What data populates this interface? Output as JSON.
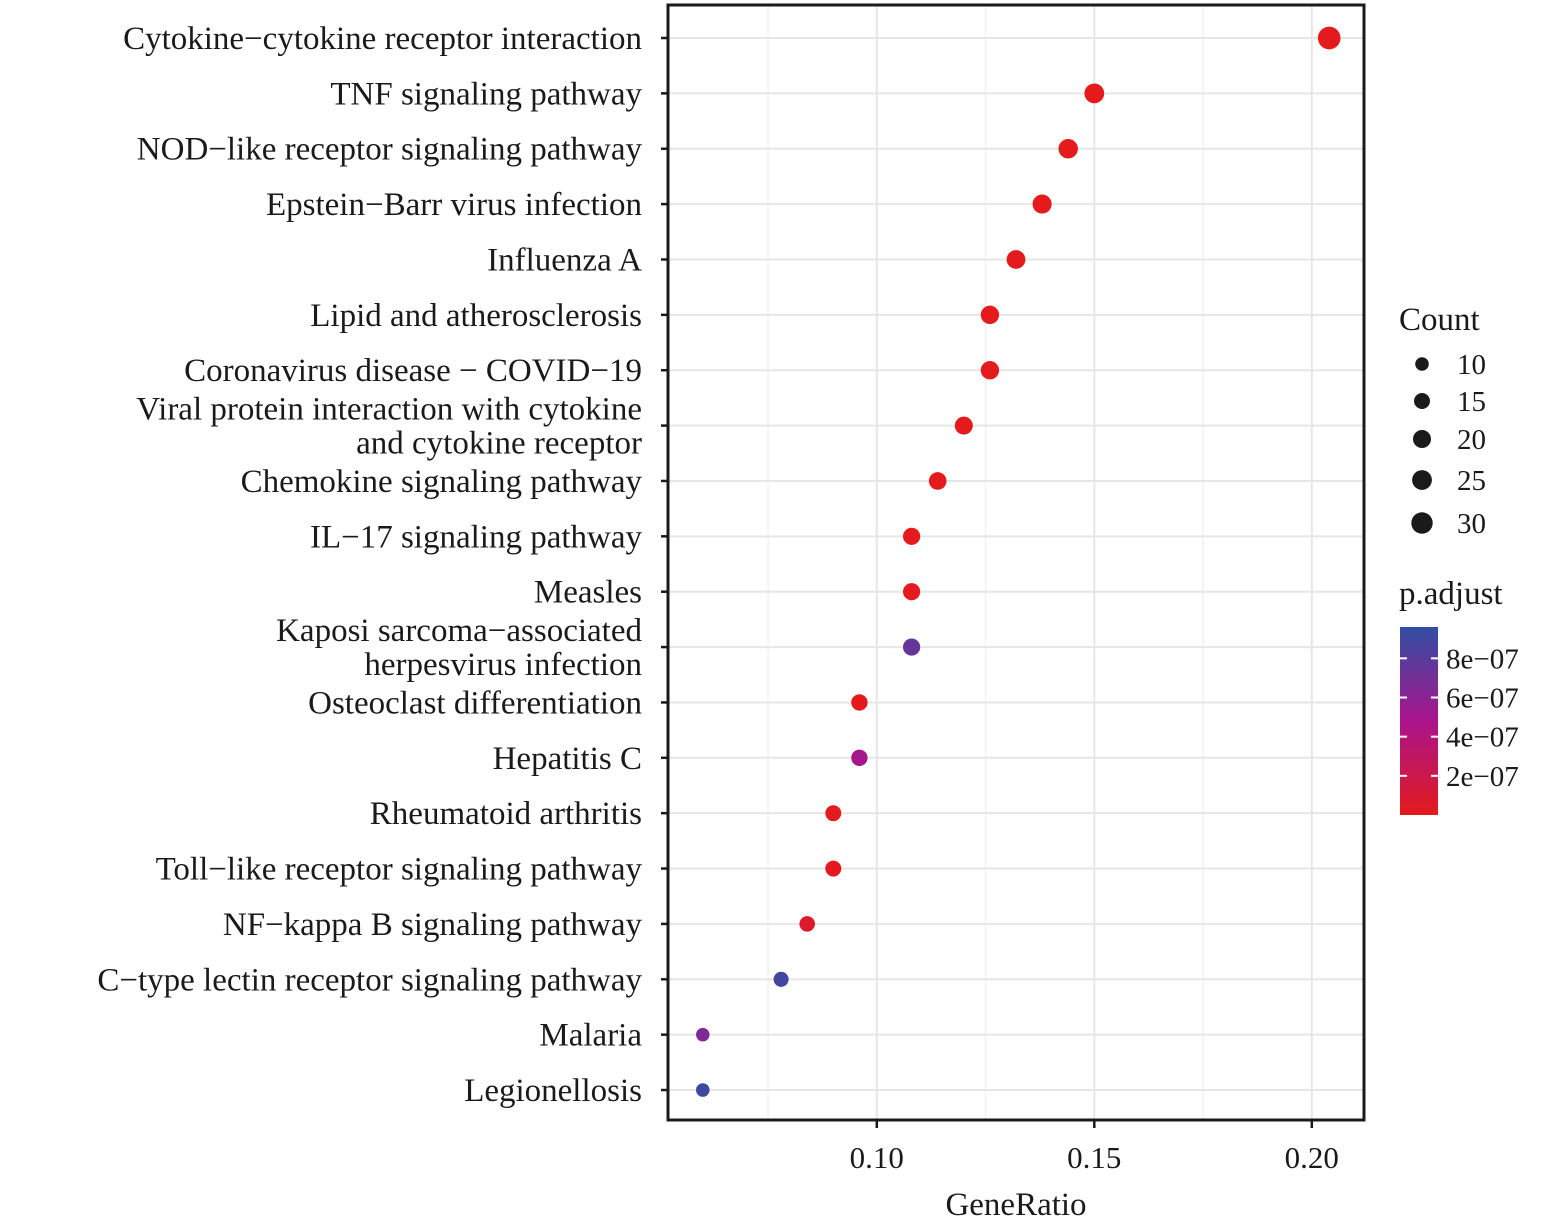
{
  "chart_data": {
    "type": "scatter",
    "xlabel": "GeneRatio",
    "ylabel": "",
    "xlim": [
      0.052,
      0.212
    ],
    "xticks": [
      0.1,
      0.15,
      0.2
    ],
    "xtick_labels": [
      "0.10",
      "0.15",
      "0.20"
    ],
    "grid": true,
    "legend_placement": "right",
    "categories": [
      "Cytokine−cytokine receptor interaction",
      "TNF signaling pathway",
      "NOD−like receptor signaling pathway",
      "Epstein−Barr virus infection",
      "Influenza A",
      "Lipid and atherosclerosis",
      "Coronavirus disease − COVID−19",
      "Viral protein interaction with cytokine\nand cytokine receptor",
      "Chemokine signaling pathway",
      "IL−17 signaling pathway",
      "Measles",
      "Kaposi sarcoma−associated\nherpesvirus infection",
      "Osteoclast differentiation",
      "Hepatitis C",
      "Rheumatoid arthritis",
      "Toll−like receptor signaling pathway",
      "NF−kappa B signaling pathway",
      "C−type lectin receptor signaling pathway",
      "Malaria",
      "Legionellosis"
    ],
    "points": [
      {
        "category": "Cytokine−cytokine receptor interaction",
        "x": 0.204,
        "count": 34,
        "p_adjust": 1e-20
      },
      {
        "category": "TNF signaling pathway",
        "x": 0.15,
        "count": 25,
        "p_adjust": 1e-15
      },
      {
        "category": "NOD−like receptor signaling pathway",
        "x": 0.144,
        "count": 24,
        "p_adjust": 1e-12
      },
      {
        "category": "Epstein−Barr virus infection",
        "x": 0.138,
        "count": 23,
        "p_adjust": 1e-11
      },
      {
        "category": "Influenza A",
        "x": 0.132,
        "count": 22,
        "p_adjust": 1e-10
      },
      {
        "category": "Lipid and atherosclerosis",
        "x": 0.126,
        "count": 21,
        "p_adjust": 1e-09
      },
      {
        "category": "Coronavirus disease − COVID−19",
        "x": 0.126,
        "count": 21,
        "p_adjust": 1e-09
      },
      {
        "category": "Viral protein interaction with cytokine\nand cytokine receptor",
        "x": 0.12,
        "count": 20,
        "p_adjust": 1e-09
      },
      {
        "category": "Chemokine signaling pathway",
        "x": 0.114,
        "count": 19,
        "p_adjust": 2e-09
      },
      {
        "category": "IL−17 signaling pathway",
        "x": 0.108,
        "count": 18,
        "p_adjust": 1e-09
      },
      {
        "category": "Measles",
        "x": 0.108,
        "count": 18,
        "p_adjust": 2e-09
      },
      {
        "category": "Kaposi sarcoma−associated\nherpesvirus infection",
        "x": 0.108,
        "count": 18,
        "p_adjust": 7.5e-07
      },
      {
        "category": "Osteoclast differentiation",
        "x": 0.096,
        "count": 16,
        "p_adjust": 5e-09
      },
      {
        "category": "Hepatitis C",
        "x": 0.096,
        "count": 16,
        "p_adjust": 5e-07
      },
      {
        "category": "Rheumatoid arthritis",
        "x": 0.09,
        "count": 15,
        "p_adjust": 1e-08
      },
      {
        "category": "Toll−like receptor signaling pathway",
        "x": 0.09,
        "count": 15,
        "p_adjust": 1.5e-08
      },
      {
        "category": "NF−kappa B signaling pathway",
        "x": 0.084,
        "count": 14,
        "p_adjust": 6e-08
      },
      {
        "category": "C−type lectin receptor signaling pathway",
        "x": 0.078,
        "count": 13,
        "p_adjust": 8.8e-07
      },
      {
        "category": "Malaria",
        "x": 0.06,
        "count": 10,
        "p_adjust": 6.5e-07
      },
      {
        "category": "Legionellosis",
        "x": 0.06,
        "count": 10,
        "p_adjust": 9e-07
      }
    ],
    "size_legend": {
      "title": "Count",
      "values": [
        10,
        15,
        20,
        25,
        30
      ],
      "labels": [
        "10",
        "15",
        "20",
        "25",
        "30"
      ]
    },
    "color_legend": {
      "title": "p.adjust",
      "range": [
        0,
        9.6e-07
      ],
      "ticks": [
        8e-07,
        6e-07,
        4e-07,
        2e-07
      ],
      "tick_labels": [
        "8e−07",
        "6e−07",
        "4e−07",
        "2e−07"
      ],
      "low_color": "#e41a1c",
      "high_color": "#2f4fa3"
    },
    "colors": {
      "panel_border": "#1a1a1a",
      "grid_major": "#e6e6e6",
      "grid_minor": "#f2f2f2",
      "text": "#1a1a1a"
    }
  }
}
